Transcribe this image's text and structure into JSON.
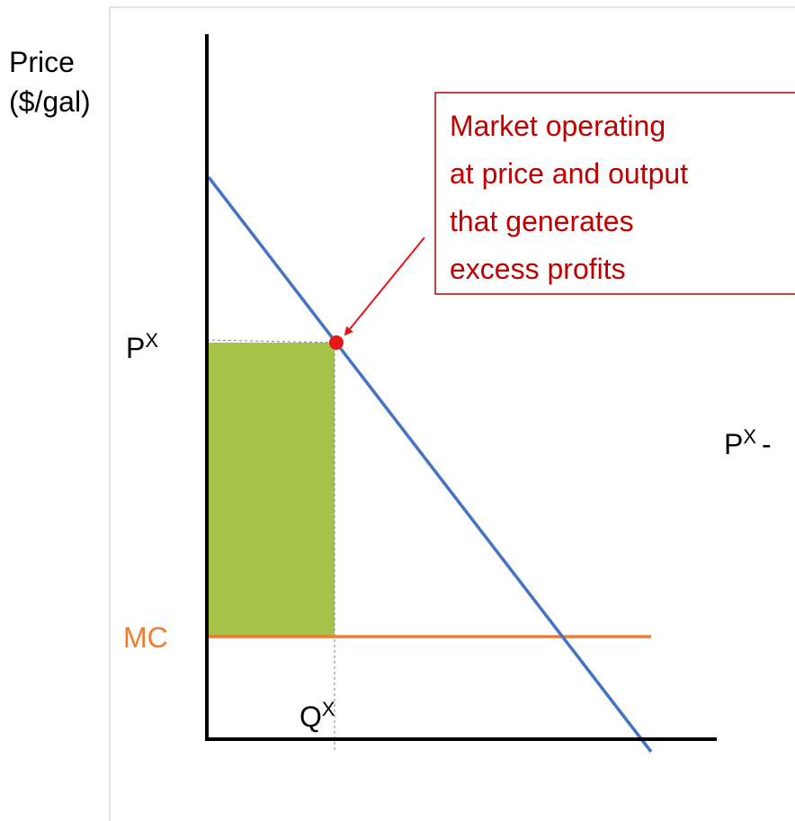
{
  "axis_label": {
    "line1": "Price",
    "line2": "($/gal)"
  },
  "labels": {
    "price": {
      "base": "P",
      "sup": "X"
    },
    "mc": "MC",
    "quantity": {
      "base": "Q",
      "sup": "X"
    },
    "side": {
      "base": "P",
      "sup": "X",
      "suffix": "-"
    }
  },
  "annotation": {
    "lines": [
      "Market operating",
      "at price and output",
      "that generates",
      "excess profits"
    ]
  }
}
